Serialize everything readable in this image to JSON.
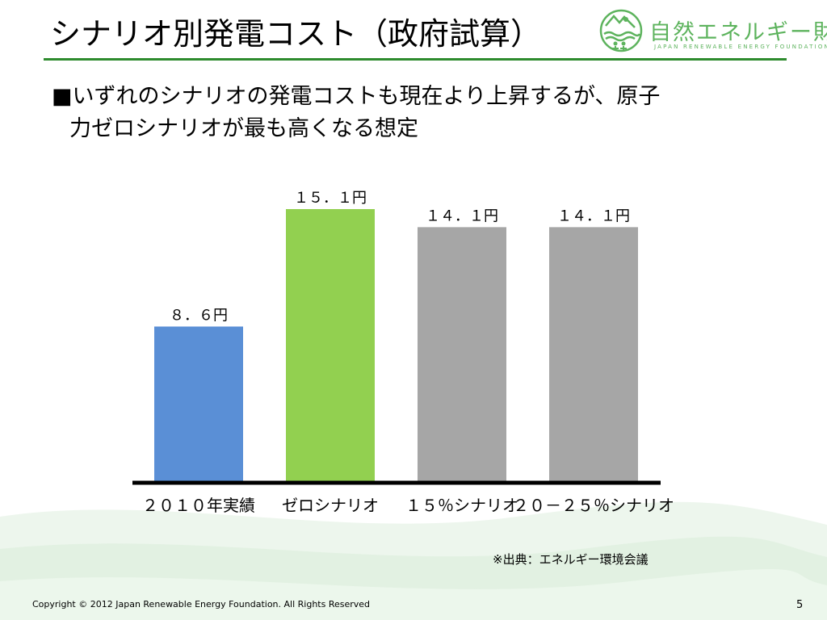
{
  "slide": {
    "title": "シナリオ別発電コスト（政府試算）",
    "bullet_line1": "■いずれのシナリオの発電コストも現在より上昇するが、原子",
    "bullet_line2": "力ゼロシナリオが最も高くなる想定",
    "source": "※出典：エネルギー環境会議",
    "footer": "Copyright © 2012 Japan Renewable Energy Foundation. All Rights Reserved",
    "page_number": "5"
  },
  "logo": {
    "name": "自然エネルギー財団",
    "subtitle": "JAPAN RENEWABLE ENERGY FOUNDATION",
    "icon": "sun-wind-water-people-icon",
    "color": "#5db35d"
  },
  "colors": {
    "accent_line": "#2e8b2e",
    "bar_actual": "#5a8fd6",
    "bar_zero": "#92d050",
    "bar_other": "#a6a6a6",
    "axis": "#000000"
  },
  "chart_data": {
    "type": "bar",
    "categories": [
      "２０１０年実績",
      "ゼロシナリオ",
      "１５％シナリオ",
      "２０－２５％シナリオ"
    ],
    "values": [
      8.6,
      15.1,
      14.1,
      14.1
    ],
    "data_labels": [
      "８．６円",
      "１５．１円",
      "１４．１円",
      "１４．１円"
    ],
    "bar_colors": [
      "#5a8fd6",
      "#92d050",
      "#a6a6a6",
      "#a6a6a6"
    ],
    "ylim": [
      0,
      15.1
    ],
    "title": "",
    "xlabel": "",
    "ylabel": "",
    "grid": false,
    "legend": false
  }
}
